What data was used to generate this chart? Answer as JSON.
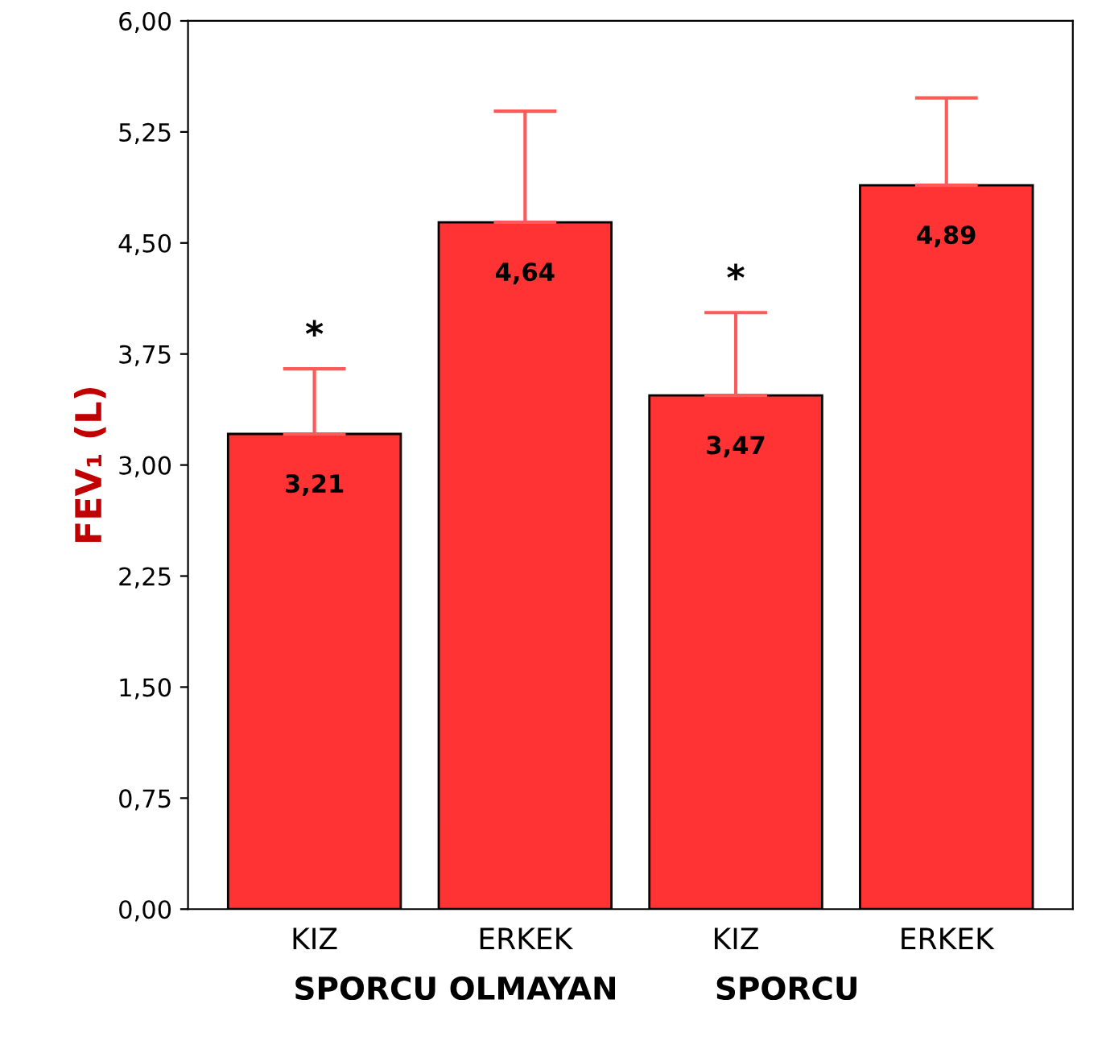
{
  "chart_data": {
    "type": "bar",
    "ylabel": "FEV₁ (L)",
    "categories": [
      "KIZ",
      "ERKEK",
      "KIZ",
      "ERKEK"
    ],
    "values": [
      3.21,
      4.64,
      3.47,
      4.89
    ],
    "color": "#ff3333",
    "errors": [
      [
        3.21,
        3.65
      ],
      [
        4.64,
        5.39
      ],
      [
        3.47,
        4.03
      ],
      [
        4.89,
        5.48
      ]
    ],
    "value_labels": [
      "3,21",
      "4,64",
      "3,47",
      "4,89"
    ],
    "ylim": [
      0,
      6
    ],
    "yticks": [
      {
        "value": 0,
        "label": "0,00"
      },
      {
        "value": 0.75,
        "label": "0,75"
      },
      {
        "value": 1.5,
        "label": "1,50"
      },
      {
        "value": 2.25,
        "label": "2,25"
      },
      {
        "value": 3,
        "label": "3,00"
      },
      {
        "value": 3.75,
        "label": "3,75"
      },
      {
        "value": 4.5,
        "label": "4,50"
      },
      {
        "value": 5.25,
        "label": "5,25"
      },
      {
        "value": 6,
        "label": "6,00"
      }
    ],
    "annotations": [
      "*",
      "*",
      "SPORCU OLMAYAN",
      "SPORCU"
    ],
    "grid": false
  }
}
